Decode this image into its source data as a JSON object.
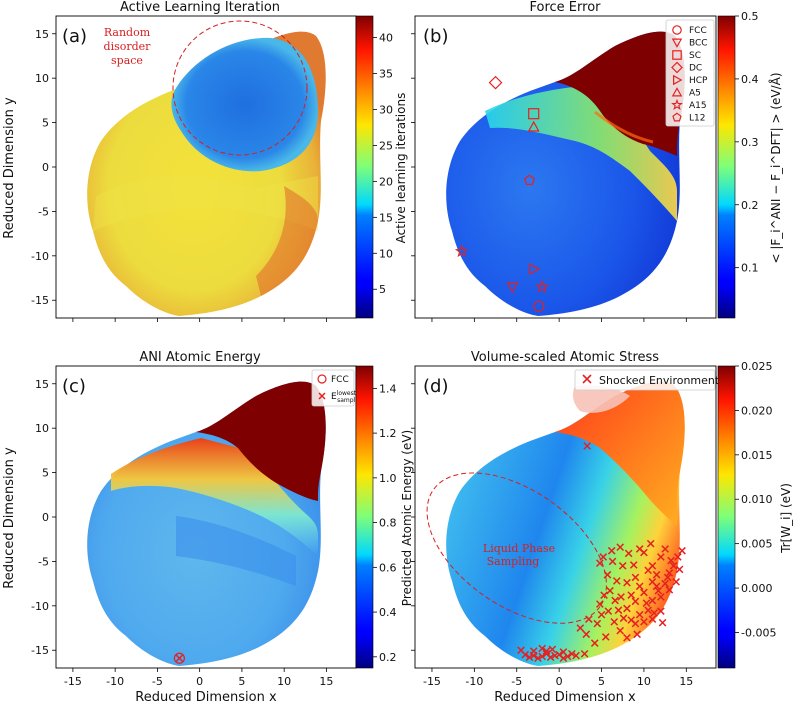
{
  "chart_data": [
    {
      "type": "scatter",
      "panel_label": "(a)",
      "title": "Active Learning Iteration",
      "xlabel": "",
      "ylabel": "Reduced Dimension y",
      "xlim": [
        -17,
        18.5
      ],
      "ylim": [
        -17,
        17
      ],
      "yticks": [
        "-15",
        "-10",
        "-5",
        "0",
        "5",
        "10",
        "15"
      ],
      "xticks": [],
      "colorbar": {
        "label": "Active learning iterations",
        "cmap": "jet",
        "range": [
          1,
          43
        ],
        "ticks": [
          "5",
          "10",
          "15",
          "20",
          "25",
          "30",
          "35",
          "40"
        ]
      },
      "annotation": {
        "lines": [
          "Random",
          "disorder",
          "space"
        ],
        "color": "#d62020"
      },
      "regions": [
        {
          "name": "random disorder space",
          "shape": "circle",
          "center": [
            5,
            9
          ],
          "radius": 7.5
        }
      ]
    },
    {
      "type": "scatter",
      "panel_label": "(b)",
      "title": "Force Error",
      "xlabel": "",
      "ylabel": "",
      "xlim": [
        -17,
        18.5
      ],
      "ylim": [
        -17,
        17
      ],
      "colorbar": {
        "label": "< |F_i^ANI − F_i^DFT| > (eV/Å)",
        "cmap": "jet",
        "range": [
          0.02,
          0.5
        ],
        "ticks": [
          "0.1",
          "0.2",
          "0.3",
          "0.4",
          "0.5"
        ]
      },
      "legend": [
        "FCC",
        "BCC",
        "SC",
        "DC",
        "HCP",
        "A5",
        "A15",
        "L12"
      ],
      "markers": [
        {
          "label": "FCC",
          "x": -2.4,
          "y": -15.7
        },
        {
          "label": "BCC",
          "x": -5.5,
          "y": -13.5
        },
        {
          "label": "SC",
          "x": -3.0,
          "y": 6.0
        },
        {
          "label": "DC",
          "x": -7.5,
          "y": 9.5
        },
        {
          "label": "HCP",
          "x": -3.0,
          "y": -11.5
        },
        {
          "label": "A5",
          "x": -3.0,
          "y": 4.5
        },
        {
          "label": "A15",
          "x": -11.5,
          "y": -9.5
        },
        {
          "label": "A15",
          "x": -2.0,
          "y": -13.5
        },
        {
          "label": "L12",
          "x": -3.5,
          "y": -1.5
        }
      ]
    },
    {
      "type": "scatter",
      "panel_label": "(c)",
      "title": "ANI Atomic Energy",
      "xlabel": "Reduced Dimension x",
      "ylabel": "Reduced Dimension y",
      "xlim": [
        -17,
        18.5
      ],
      "ylim": [
        -17,
        17
      ],
      "xticks": [
        "-15",
        "-10",
        "-5",
        "0",
        "5",
        "10",
        "15"
      ],
      "yticks": [
        "-15",
        "-10",
        "-5",
        "0",
        "5",
        "10",
        "15"
      ],
      "colorbar": {
        "label": "Predicted Atomic Energy (eV)",
        "cmap": "jet",
        "range": [
          0.15,
          1.5
        ],
        "ticks": [
          "0.2",
          "0.4",
          "0.6",
          "0.8",
          "1.0",
          "1.2",
          "1.4"
        ]
      },
      "legend": [
        "FCC",
        "E_sampled^lowest"
      ],
      "markers": [
        {
          "label": "FCC",
          "x": -2.4,
          "y": -15.9
        },
        {
          "label": "E_sampled^lowest",
          "x": -2.4,
          "y": -15.9
        }
      ]
    },
    {
      "type": "scatter",
      "panel_label": "(d)",
      "title": "Volume-scaled Atomic Stress",
      "xlabel": "Reduced Dimension x",
      "ylabel": "",
      "xlim": [
        -17,
        18.5
      ],
      "ylim": [
        -17,
        17
      ],
      "xticks": [
        "-15",
        "-10",
        "-5",
        "0",
        "5",
        "10",
        "15"
      ],
      "colorbar": {
        "label": "Tr[W_i] (eV)",
        "cmap": "jet",
        "range": [
          -0.009,
          0.025
        ],
        "ticks": [
          "-0.005",
          "0.000",
          "0.005",
          "0.010",
          "0.015",
          "0.020",
          "0.025"
        ]
      },
      "legend": [
        "Shocked Environments"
      ],
      "annotation": {
        "lines": [
          "Liquid Phase",
          "Sampling"
        ],
        "color": "#d62020"
      },
      "regions": [
        {
          "name": "liquid phase sampling",
          "shape": "ellipse",
          "center": [
            -5,
            -3.5
          ],
          "rx": 12,
          "ry": 6.5,
          "rotation_deg": -35
        }
      ],
      "shocked_environments": [
        [
          -4,
          -15.5
        ],
        [
          -3.5,
          -15.8
        ],
        [
          -3,
          -15.6
        ],
        [
          -2.5,
          -15.9
        ],
        [
          -2,
          -15.7
        ],
        [
          -1.5,
          -15.4
        ],
        [
          -1,
          -15.8
        ],
        [
          -0.5,
          -15.6
        ],
        [
          0,
          -15.5
        ],
        [
          0.5,
          -15.9
        ],
        [
          1,
          -15.7
        ],
        [
          1.5,
          -15.4
        ],
        [
          -4.5,
          -15
        ],
        [
          -3,
          -15.1
        ],
        [
          -1.5,
          -15.1
        ],
        [
          0.5,
          -15.2
        ],
        [
          2,
          -15.6
        ],
        [
          3,
          -15.4
        ],
        [
          -2,
          -14.8
        ],
        [
          -0.8,
          -14.9
        ],
        [
          3.3,
          8
        ],
        [
          5.2,
          -4.5
        ],
        [
          6.3,
          -5
        ],
        [
          5.7,
          -6.5
        ],
        [
          6.8,
          -7.2
        ],
        [
          5.3,
          -8.8
        ],
        [
          7.3,
          -9
        ],
        [
          5.8,
          -10.6
        ],
        [
          6.5,
          -11.8
        ],
        [
          7.2,
          -12.8
        ],
        [
          8,
          -10.3
        ],
        [
          8.5,
          -11.6
        ],
        [
          9,
          -9.5
        ],
        [
          9.5,
          -11
        ],
        [
          10,
          -8.5
        ],
        [
          10.5,
          -10.5
        ],
        [
          11,
          -9.4
        ],
        [
          11.5,
          -7.8
        ],
        [
          12,
          -9
        ],
        [
          12.5,
          -7.5
        ],
        [
          13,
          -6.3
        ],
        [
          13.5,
          -5.5
        ],
        [
          14,
          -4.5
        ],
        [
          14.5,
          -3.8
        ],
        [
          11,
          -5.5
        ],
        [
          12,
          -4.5
        ],
        [
          10,
          -4
        ],
        [
          12.5,
          -3.6
        ],
        [
          11.5,
          -6.5
        ],
        [
          13,
          -8.2
        ],
        [
          9,
          -6.8
        ],
        [
          8,
          -7.4
        ],
        [
          7.5,
          -5.5
        ],
        [
          9.5,
          -3.6
        ],
        [
          10.5,
          -6
        ],
        [
          12,
          -10.6
        ],
        [
          9,
          -12
        ],
        [
          8,
          -13.6
        ],
        [
          10,
          -11.8
        ],
        [
          11,
          -11.5
        ],
        [
          4.5,
          -12
        ],
        [
          5.5,
          -13.5
        ],
        [
          3.5,
          -11.5
        ],
        [
          4.8,
          -9.8
        ],
        [
          6,
          -8.3
        ],
        [
          7,
          -10.5
        ],
        [
          8.5,
          -8.8
        ],
        [
          9.5,
          -7.8
        ],
        [
          11,
          -7.3
        ],
        [
          12.8,
          -6.8
        ],
        [
          13.8,
          -7.3
        ],
        [
          10.3,
          -9.7
        ],
        [
          11.7,
          -8.3
        ],
        [
          10.8,
          -3
        ],
        [
          7.2,
          -3.4
        ],
        [
          8.2,
          -4.1
        ],
        [
          6.2,
          -3.8
        ],
        [
          4.8,
          -5.2
        ],
        [
          12.2,
          -11.9
        ],
        [
          9.2,
          -13.2
        ],
        [
          7.6,
          -11.4
        ],
        [
          6.6,
          -9.4
        ],
        [
          8.8,
          -5.4
        ],
        [
          13.2,
          -4.9
        ],
        [
          14.2,
          -5.9
        ],
        [
          11.2,
          -10.8
        ],
        [
          3.2,
          -13.2
        ],
        [
          4.2,
          -14.2
        ],
        [
          2.5,
          -12.5
        ],
        [
          5,
          -11
        ]
      ]
    }
  ],
  "colors": {
    "marker": "#e62020",
    "annotation": "#d62020"
  }
}
